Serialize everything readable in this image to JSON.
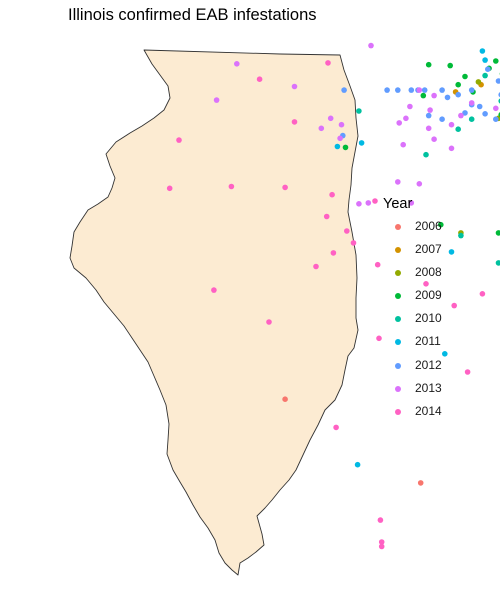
{
  "title": "Illinois confirmed EAB infestations",
  "legend": {
    "title": "Year",
    "position": "right",
    "items": [
      {
        "year": "2006",
        "color": "#F8766D"
      },
      {
        "year": "2007",
        "color": "#D39200"
      },
      {
        "year": "2008",
        "color": "#93AA00"
      },
      {
        "year": "2009",
        "color": "#00BA38"
      },
      {
        "year": "2010",
        "color": "#00C19F"
      },
      {
        "year": "2011",
        "color": "#00B9E3"
      },
      {
        "year": "2012",
        "color": "#619CFF"
      },
      {
        "year": "2013",
        "color": "#DB72FB"
      },
      {
        "year": "2014",
        "color": "#FF61C3"
      }
    ]
  },
  "map": {
    "region": "Illinois",
    "fill_color": "#FCEBD2",
    "border_color": "#333333"
  },
  "chart_data": {
    "type": "scatter",
    "title": "Illinois confirmed EAB infestations",
    "legend_title": "Year",
    "xlabel": "",
    "ylabel": "",
    "grid": false,
    "axes": "none",
    "series": [
      {
        "name": "2006",
        "color": "#F8766D",
        "points": [
          [
            -88.17,
            41.87
          ],
          [
            -88.13,
            41.86
          ],
          [
            -88.1,
            41.88
          ],
          [
            -88.08,
            41.84
          ],
          [
            -88.05,
            41.86
          ],
          [
            -89.79,
            38.6
          ],
          [
            -88.78,
            37.68
          ],
          [
            -88.07,
            41.81
          ],
          [
            -88.11,
            41.9
          ]
        ]
      },
      {
        "name": "2007",
        "color": "#D39200",
        "points": [
          [
            -88.33,
            42.06
          ],
          [
            -87.7,
            41.93
          ],
          [
            -88.05,
            41.97
          ],
          [
            -88.0,
            41.88
          ],
          [
            -87.86,
            41.94
          ],
          [
            -88.52,
            41.98
          ],
          [
            -87.75,
            41.99
          ]
        ]
      },
      {
        "name": "2008",
        "color": "#93AA00",
        "points": [
          [
            -87.95,
            42.37
          ],
          [
            -88.35,
            42.09
          ],
          [
            -87.63,
            41.72
          ],
          [
            -88.2,
            41.69
          ],
          [
            -88.48,
            40.43
          ],
          [
            -87.96,
            42.25
          ],
          [
            -88.1,
            41.94
          ]
        ]
      },
      {
        "name": "2009",
        "color": "#00BA38",
        "points": [
          [
            -88.72,
            42.28
          ],
          [
            -88.56,
            42.27
          ],
          [
            -88.22,
            42.32
          ],
          [
            -88.27,
            42.24
          ],
          [
            -88.45,
            42.15
          ],
          [
            -88.17,
            42.18
          ],
          [
            -88.5,
            42.06
          ],
          [
            -88.39,
            41.98
          ],
          [
            -87.95,
            42.15
          ],
          [
            -88.06,
            42.18
          ],
          [
            -87.97,
            42.05
          ],
          [
            -88.03,
            41.99
          ],
          [
            -87.87,
            41.92
          ],
          [
            -87.93,
            41.88
          ],
          [
            -87.89,
            41.83
          ],
          [
            -87.82,
            41.77
          ],
          [
            -87.71,
            41.7
          ],
          [
            -87.94,
            41.74
          ],
          [
            -88.0,
            42.09
          ],
          [
            -88.14,
            42.06
          ],
          [
            -87.82,
            42.11
          ],
          [
            -87.86,
            42.01
          ],
          [
            -87.9,
            41.97
          ],
          [
            -87.8,
            41.94
          ],
          [
            -88.12,
            41.79
          ],
          [
            -88.18,
            41.73
          ],
          [
            -87.66,
            41.71
          ],
          [
            -89.34,
            41.37
          ],
          [
            -88.63,
            40.52
          ],
          [
            -88.2,
            40.43
          ],
          [
            -88.76,
            41.94
          ],
          [
            -88.08,
            42.12
          ]
        ]
      },
      {
        "name": "2010",
        "color": "#00C19F",
        "points": [
          [
            -87.7,
            42.3
          ],
          [
            -87.76,
            42.22
          ],
          [
            -88.3,
            42.16
          ],
          [
            -88.06,
            42.0
          ],
          [
            -87.66,
            41.74
          ],
          [
            -87.6,
            41.66
          ],
          [
            -87.74,
            41.65
          ],
          [
            -87.8,
            41.7
          ],
          [
            -88.0,
            41.6
          ],
          [
            -88.4,
            41.68
          ],
          [
            -88.5,
            41.57
          ],
          [
            -88.1,
            41.52
          ],
          [
            -87.87,
            41.53
          ],
          [
            -87.7,
            41.53
          ],
          [
            -89.24,
            41.77
          ],
          [
            -88.74,
            41.29
          ],
          [
            -88.48,
            40.4
          ],
          [
            -87.93,
            40.31
          ],
          [
            -88.05,
            40.08
          ],
          [
            -88.2,
            40.1
          ],
          [
            -88.01,
            42.05
          ],
          [
            -87.88,
            41.85
          ],
          [
            -88.18,
            41.88
          ],
          [
            -87.96,
            41.67
          ],
          [
            -87.82,
            41.62
          ],
          [
            -87.74,
            41.9
          ]
        ]
      },
      {
        "name": "2011",
        "color": "#00B9E3",
        "points": [
          [
            -87.85,
            42.4
          ],
          [
            -88.11,
            42.43
          ],
          [
            -88.32,
            42.43
          ],
          [
            -87.74,
            42.4
          ],
          [
            -87.95,
            42.34
          ],
          [
            -88.3,
            42.33
          ],
          [
            -87.92,
            42.2
          ],
          [
            -87.73,
            41.87
          ],
          [
            -87.65,
            41.9
          ],
          [
            -87.62,
            41.8
          ],
          [
            -87.61,
            41.72
          ],
          [
            -87.57,
            41.7
          ],
          [
            -87.8,
            41.54
          ],
          [
            -88.0,
            41.44
          ],
          [
            -87.79,
            41.47
          ],
          [
            -89.22,
            41.42
          ],
          [
            -89.4,
            41.38
          ],
          [
            -88.55,
            40.22
          ],
          [
            -89.25,
            37.88
          ],
          [
            -88.6,
            39.1
          ],
          [
            -87.59,
            41.76
          ],
          [
            -87.68,
            41.86
          ],
          [
            -87.9,
            41.7
          ],
          [
            -88.07,
            41.58
          ]
        ]
      },
      {
        "name": "2012",
        "color": "#619CFF",
        "points": [
          [
            -89.35,
            42.0
          ],
          [
            -89.03,
            42.0
          ],
          [
            -88.95,
            42.0
          ],
          [
            -88.85,
            42.0
          ],
          [
            -88.8,
            42.0
          ],
          [
            -88.75,
            42.0
          ],
          [
            -88.62,
            42.0
          ],
          [
            -88.4,
            42.0
          ],
          [
            -88.02,
            42.44
          ],
          [
            -87.87,
            42.39
          ],
          [
            -88.28,
            42.23
          ],
          [
            -88.2,
            42.1
          ],
          [
            -87.8,
            42.16
          ],
          [
            -87.7,
            42.02
          ],
          [
            -87.64,
            41.84
          ],
          [
            -88.18,
            41.95
          ],
          [
            -88.34,
            41.82
          ],
          [
            -88.58,
            41.92
          ],
          [
            -88.4,
            41.84
          ],
          [
            -88.62,
            41.68
          ],
          [
            -88.72,
            41.72
          ],
          [
            -89.36,
            41.5
          ],
          [
            -88.3,
            41.74
          ],
          [
            -88.1,
            41.76
          ],
          [
            -87.95,
            41.8
          ],
          [
            -87.76,
            41.78
          ],
          [
            -87.7,
            41.62
          ],
          [
            -88.08,
            41.53
          ],
          [
            -88.5,
            41.95
          ],
          [
            -87.96,
            42.05
          ],
          [
            -87.84,
            41.98
          ],
          [
            -88.22,
            41.68
          ],
          [
            -88.45,
            41.75
          ],
          [
            -87.92,
            41.58
          ],
          [
            -87.88,
            41.62
          ]
        ]
      },
      {
        "name": "2013",
        "color": "#DB72FB",
        "points": [
          [
            -89.15,
            42.49
          ],
          [
            -90.15,
            42.29
          ],
          [
            -89.72,
            42.04
          ],
          [
            -90.3,
            41.89
          ],
          [
            -88.79,
            42.0
          ],
          [
            -88.68,
            41.94
          ],
          [
            -88.86,
            41.82
          ],
          [
            -88.71,
            41.78
          ],
          [
            -88.89,
            41.69
          ],
          [
            -88.94,
            41.64
          ],
          [
            -88.48,
            41.72
          ],
          [
            -88.55,
            41.62
          ],
          [
            -88.72,
            41.58
          ],
          [
            -88.68,
            41.46
          ],
          [
            -89.37,
            41.62
          ],
          [
            -89.45,
            41.69
          ],
          [
            -89.52,
            41.58
          ],
          [
            -89.38,
            41.47
          ],
          [
            -88.91,
            41.4
          ],
          [
            -88.55,
            41.36
          ],
          [
            -88.95,
            40.99
          ],
          [
            -88.79,
            40.97
          ],
          [
            -88.85,
            40.76
          ],
          [
            -89.17,
            40.76
          ],
          [
            -89.24,
            40.75
          ],
          [
            -88.4,
            41.86
          ],
          [
            -88.22,
            41.8
          ]
        ]
      },
      {
        "name": "2014",
        "color": "#FF61C3",
        "points": [
          [
            -89.47,
            42.3
          ],
          [
            -89.98,
            42.12
          ],
          [
            -89.72,
            41.65
          ],
          [
            -90.58,
            41.45
          ],
          [
            -90.65,
            40.92
          ],
          [
            -90.19,
            40.94
          ],
          [
            -89.79,
            40.93
          ],
          [
            -89.12,
            40.78
          ],
          [
            -89.44,
            40.85
          ],
          [
            -89.48,
            40.61
          ],
          [
            -89.33,
            40.45
          ],
          [
            -89.28,
            40.32
          ],
          [
            -89.43,
            40.21
          ],
          [
            -89.56,
            40.06
          ],
          [
            -89.1,
            40.08
          ],
          [
            -88.74,
            39.87
          ],
          [
            -88.32,
            39.76
          ],
          [
            -88.43,
            38.9
          ],
          [
            -90.32,
            39.8
          ],
          [
            -89.91,
            39.45
          ],
          [
            -89.09,
            39.27
          ],
          [
            -87.95,
            40.07
          ],
          [
            -89.08,
            37.27
          ],
          [
            -89.07,
            37.03
          ],
          [
            -89.07,
            36.98
          ],
          [
            -89.41,
            38.29
          ],
          [
            -88.53,
            39.63
          ],
          [
            -87.8,
            38.83
          ]
        ]
      }
    ]
  }
}
